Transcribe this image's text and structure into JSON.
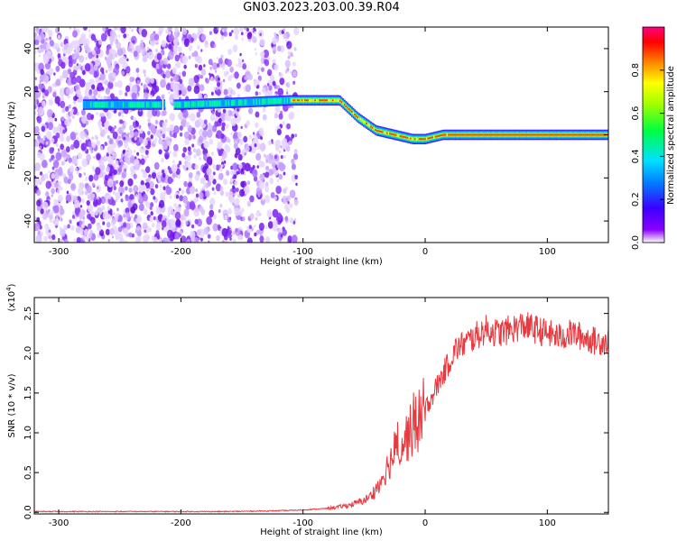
{
  "title": "GN03.2023.203.00.39.R04",
  "chart_data": [
    {
      "type": "heatmap",
      "xlabel": "Height of straight line (km)",
      "ylabel": "Frequency (Hz)",
      "xlim": [
        -320,
        150
      ],
      "ylim": [
        -50,
        50
      ],
      "xticks": [
        -300,
        -200,
        -100,
        0,
        100
      ],
      "yticks": [
        -40,
        -20,
        0,
        20,
        40
      ],
      "colorbar": {
        "label": "Normalized spectral amplitude",
        "range": [
          0.0,
          1.0
        ],
        "ticks": [
          "0.0",
          "0.2",
          "0.4",
          "0.6",
          "0.8"
        ]
      },
      "ridge": {
        "x": [
          -280,
          -200,
          -150,
          -110,
          -70,
          -55,
          -40,
          -25,
          -10,
          0,
          15,
          40,
          100,
          150
        ],
        "y": [
          14,
          14,
          15,
          16,
          16,
          8,
          2,
          0,
          -2,
          -2,
          0,
          0,
          0,
          0
        ]
      }
    },
    {
      "type": "line",
      "xlabel": "Height of straight line (km)",
      "ylabel": "SNR (10 * v/v)",
      "multiplier": "(x10",
      "multiplier_exp": "4",
      "xlim": [
        -320,
        150
      ],
      "ylim": [
        -0.02,
        2.7
      ],
      "xticks": [
        -300,
        -200,
        -100,
        0,
        100
      ],
      "yticks": [
        "0.0",
        "0.5",
        "1.0",
        "1.5",
        "2.0",
        "2.5"
      ],
      "series": [
        {
          "x": [
            -320,
            -280,
            -240,
            -200,
            -160,
            -120,
            -100,
            -80,
            -70,
            -60,
            -50,
            -45,
            -40,
            -35,
            -30,
            -25,
            -20,
            -15,
            -10,
            -5,
            0,
            5,
            10,
            15,
            20,
            25,
            30,
            40,
            50,
            60,
            70,
            80,
            90,
            100,
            110,
            120,
            130,
            140,
            150
          ],
          "y": [
            0.01,
            0.01,
            0.01,
            0.01,
            0.01,
            0.02,
            0.03,
            0.05,
            0.07,
            0.1,
            0.15,
            0.2,
            0.3,
            0.45,
            0.6,
            0.75,
            0.85,
            0.95,
            1.05,
            1.15,
            1.3,
            1.45,
            1.6,
            1.75,
            1.9,
            2.05,
            2.1,
            2.2,
            2.3,
            2.25,
            2.3,
            2.35,
            2.3,
            2.25,
            2.2,
            2.25,
            2.2,
            2.15,
            2.15
          ],
          "color": "#e8393f"
        }
      ]
    }
  ]
}
